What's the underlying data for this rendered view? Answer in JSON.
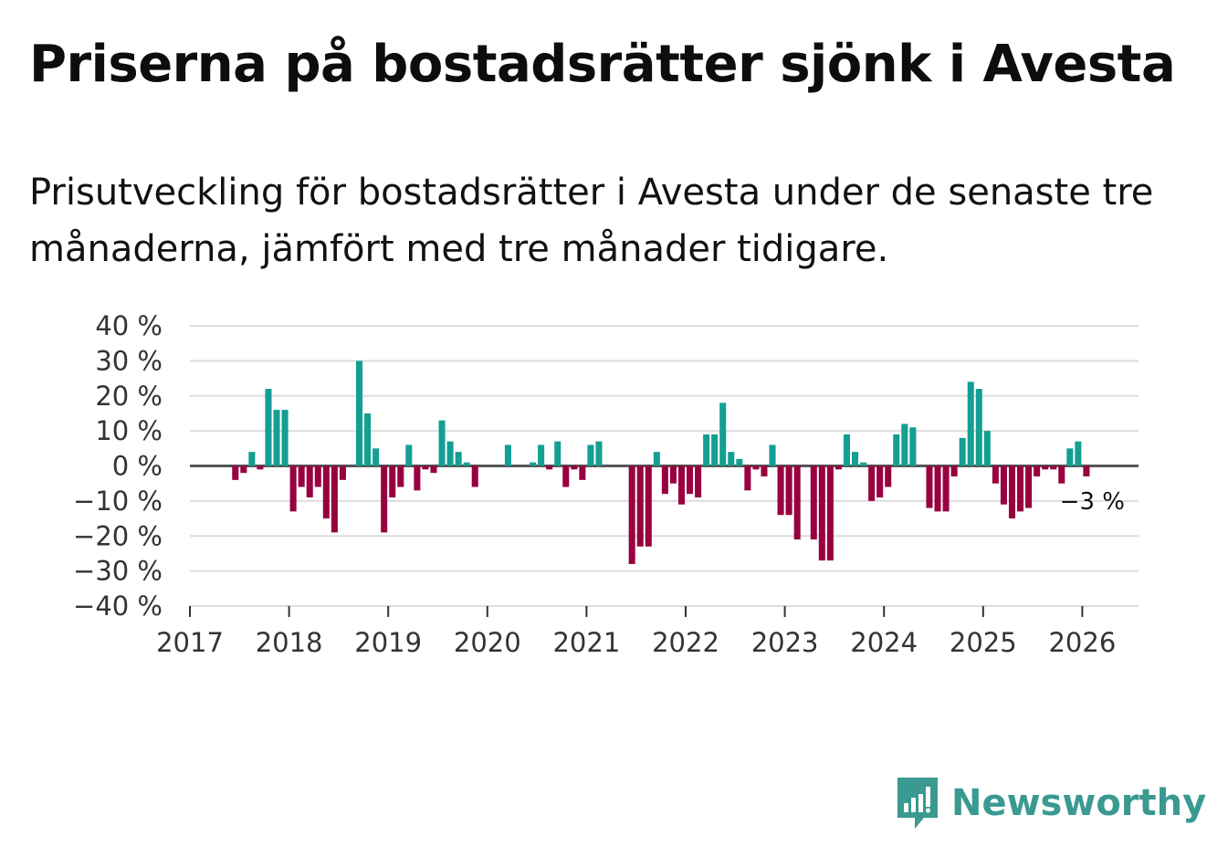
{
  "title": "Priserna på bostadsrätter sjönk i Avesta",
  "subtitle": "Prisutveckling för bostadsrätter i Avesta under de senaste tre månaderna, jämfört med tre månader tidigare.",
  "brand": {
    "name": "Newsworthy",
    "icon": "newsworthy-logo-icon"
  },
  "colors": {
    "positive": "#139f91",
    "negative": "#980040",
    "grid": "#dddddd",
    "zero": "#555555",
    "brand": "#3a9a91"
  },
  "chart_data": {
    "type": "bar",
    "title": "Priserna på bostadsrätter sjönk i Avesta",
    "xlabel": "",
    "ylabel": "",
    "ylim": [
      -40,
      40
    ],
    "yticks": [
      40,
      30,
      20,
      10,
      0,
      -10,
      -20,
      -30,
      -40
    ],
    "ytick_labels": [
      "40 %",
      "30 %",
      "20 %",
      "10 %",
      "0 %",
      "−10 %",
      "−20 %",
      "−30 %",
      "−40 %"
    ],
    "xticks": [
      "2017",
      "2018",
      "2019",
      "2020",
      "2021",
      "2022",
      "2023",
      "2024",
      "2025",
      "2026"
    ],
    "x_start": 2017,
    "end_label": "−3 %",
    "series": [
      {
        "name": "Prisutveckling",
        "values": [
          null,
          null,
          null,
          null,
          null,
          -4,
          -2,
          4,
          -1,
          22,
          16,
          16,
          -13,
          -6,
          -9,
          -6,
          -15,
          -19,
          -4,
          0,
          30,
          15,
          5,
          -19,
          -9,
          -6,
          6,
          -7,
          -1,
          -2,
          13,
          7,
          4,
          1,
          -6,
          0,
          0,
          0,
          6,
          0,
          0,
          1,
          6,
          -1,
          7,
          -6,
          -1,
          -4,
          6,
          7,
          0,
          0,
          0,
          -28,
          -23,
          -23,
          4,
          -8,
          -5,
          -11,
          -8,
          -9,
          9,
          9,
          18,
          4,
          2,
          -7,
          -1,
          -3,
          6,
          -14,
          -14,
          -21,
          0,
          -21,
          -27,
          -27,
          -1,
          9,
          4,
          1,
          -10,
          -9,
          -6,
          9,
          12,
          11,
          0,
          -12,
          -13,
          -13,
          -3,
          8,
          24,
          22,
          10,
          -5,
          -11,
          -15,
          -13,
          -12,
          -3,
          -1,
          -1,
          -5,
          5,
          7,
          -3
        ]
      }
    ]
  }
}
